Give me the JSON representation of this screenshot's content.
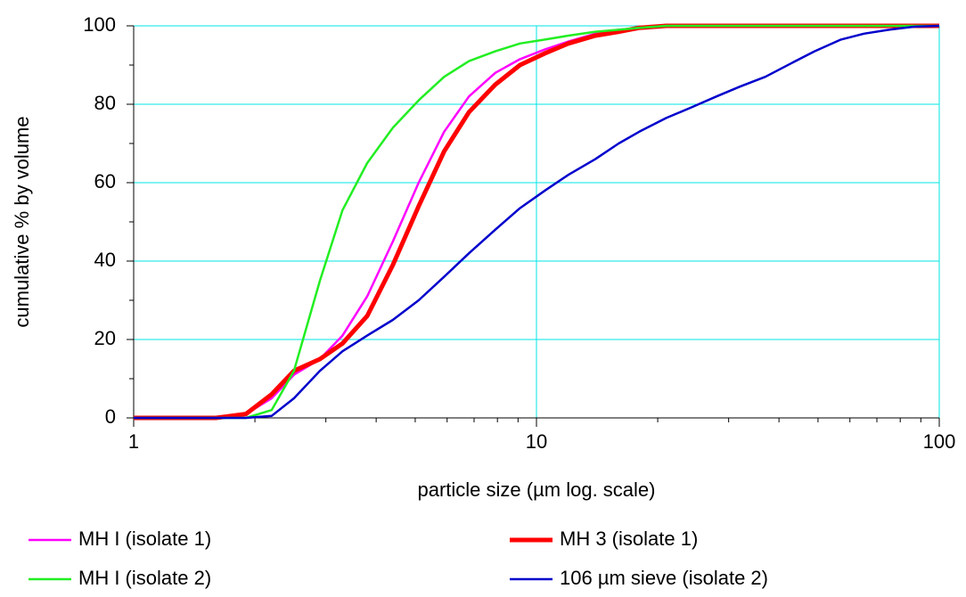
{
  "chart_data": {
    "type": "line",
    "x_label": "particle size (µm log. scale)",
    "y_label": "cumulative % by volume",
    "x": [
      1,
      1.2,
      1.4,
      1.6,
      1.9,
      2.2,
      2.5,
      2.9,
      3.3,
      3.8,
      4.4,
      5.1,
      5.9,
      6.8,
      7.9,
      9.1,
      10.5,
      12,
      14,
      16,
      18,
      21,
      24,
      28,
      32,
      37,
      43,
      49,
      57,
      65,
      75,
      87,
      100
    ],
    "series": [
      {
        "name": "MH I (isolate 1)",
        "color": "#ff00ff",
        "width": 2.5,
        "values": [
          0,
          0,
          0,
          0,
          1,
          5,
          11,
          15,
          21,
          31,
          45,
          60,
          73,
          82,
          88,
          91.5,
          94,
          96,
          98,
          99,
          99.5,
          100,
          100,
          100,
          100,
          100,
          100,
          100,
          100,
          100,
          100,
          100,
          100
        ]
      },
      {
        "name": "MH 3 (isolate 1)",
        "color": "#ff0000",
        "width": 5,
        "values": [
          0,
          0,
          0,
          0,
          1,
          6,
          12,
          15,
          19,
          26,
          39,
          54,
          68,
          78,
          85,
          90,
          93,
          95.5,
          97.5,
          98.5,
          99.5,
          100,
          100,
          100,
          100,
          100,
          100,
          100,
          100,
          100,
          100,
          100,
          100
        ]
      },
      {
        "name": "MH I (isolate 2)",
        "color": "#22ee22",
        "width": 2.5,
        "values": [
          0,
          0,
          0,
          0,
          0,
          2,
          12,
          35,
          53,
          65,
          74,
          81,
          87,
          91,
          93.5,
          95.5,
          96.5,
          97.5,
          98.5,
          99,
          99.5,
          100,
          100,
          100,
          100,
          100,
          100,
          100,
          100,
          100,
          100,
          100,
          100
        ]
      },
      {
        "name": "106 µm sieve (isolate 2)",
        "color": "#0000cc",
        "width": 2.5,
        "values": [
          0,
          0,
          0,
          0,
          0,
          0.5,
          5,
          12,
          17,
          21,
          25,
          30,
          36,
          42,
          48,
          53.5,
          58,
          62,
          66,
          70,
          73,
          76.5,
          79,
          82,
          84.5,
          87,
          90.5,
          93.5,
          96.5,
          98,
          99,
          99.8,
          100
        ]
      }
    ],
    "x_log": true,
    "xlim": [
      1,
      100
    ],
    "xticks": [
      1,
      10,
      100
    ],
    "xminorticks": [
      2,
      3,
      4,
      5,
      6,
      7,
      8,
      9,
      20,
      30,
      40,
      50,
      60,
      70,
      80,
      90
    ],
    "ylim": [
      0,
      100
    ],
    "yticks": [
      0,
      20,
      40,
      60,
      80,
      100
    ],
    "yminorticks": [
      10,
      30,
      50,
      70,
      90
    ],
    "grid": true,
    "grid_color": "#00e5e5"
  }
}
